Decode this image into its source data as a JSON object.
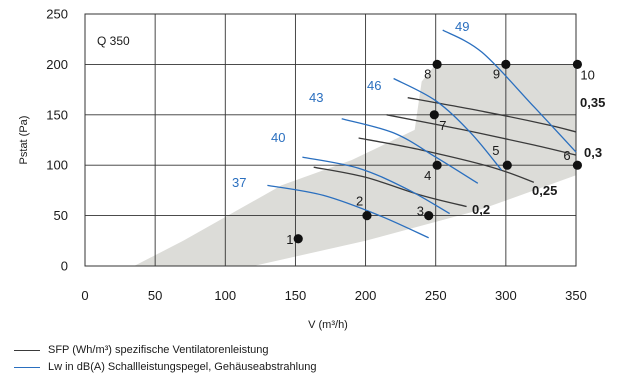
{
  "chart_data": {
    "type": "scatter",
    "model_label": "Q 350",
    "xlabel": "V (m³/h)",
    "ylabel": "Pstat (Pa)",
    "xlim": [
      0,
      350
    ],
    "ylim": [
      0,
      250
    ],
    "xticks": [
      0,
      50,
      100,
      150,
      200,
      250,
      300,
      350
    ],
    "yticks": [
      0,
      50,
      100,
      150,
      200,
      250
    ],
    "grid": true,
    "operating_range": [
      [
        35,
        0
      ],
      [
        120,
        0
      ],
      [
        200,
        25
      ],
      [
        280,
        55
      ],
      [
        350,
        90
      ],
      [
        350,
        200
      ],
      [
        250,
        200
      ],
      [
        240,
        183
      ],
      [
        235,
        135
      ],
      [
        190,
        105
      ],
      [
        140,
        80
      ],
      [
        70,
        25
      ]
    ],
    "points": [
      {
        "label": "1",
        "x": 152,
        "y": 27
      },
      {
        "label": "2",
        "x": 201,
        "y": 50
      },
      {
        "label": "3",
        "x": 245,
        "y": 50
      },
      {
        "label": "4",
        "x": 251,
        "y": 100
      },
      {
        "label": "5",
        "x": 301,
        "y": 100
      },
      {
        "label": "6",
        "x": 351,
        "y": 100
      },
      {
        "label": "7",
        "x": 249,
        "y": 150
      },
      {
        "label": "8",
        "x": 251,
        "y": 200
      },
      {
        "label": "9",
        "x": 300,
        "y": 200
      },
      {
        "label": "10",
        "x": 351,
        "y": 200
      }
    ],
    "series": [
      {
        "name": "SFP (Wh/m³) spezifische Ventilatorenleistung",
        "color": "#3a3a3a",
        "curves": [
          {
            "label": "0,2",
            "points": [
              [
                163,
                98
              ],
              [
                200,
                88
              ],
              [
                240,
                70
              ],
              [
                272,
                59
              ]
            ]
          },
          {
            "label": "0,25",
            "points": [
              [
                195,
                127
              ],
              [
                240,
                115
              ],
              [
                290,
                98
              ],
              [
                320,
                83
              ]
            ]
          },
          {
            "label": "0,3",
            "points": [
              [
                215,
                150
              ],
              [
                270,
                135
              ],
              [
                320,
                120
              ],
              [
                350,
                110
              ]
            ]
          },
          {
            "label": "0,35",
            "points": [
              [
                230,
                167
              ],
              [
                285,
                153
              ],
              [
                330,
                140
              ],
              [
                350,
                133
              ]
            ]
          }
        ]
      },
      {
        "name": "Lw in dB(A) Schallleistungspegel, Gehäuseabstrahlung",
        "color": "#2a6fbf",
        "curves": [
          {
            "label": "37",
            "points": [
              [
                130,
                80
              ],
              [
                170,
                70
              ],
              [
                210,
                50
              ],
              [
                245,
                28
              ]
            ]
          },
          {
            "label": "40",
            "points": [
              [
                155,
                108
              ],
              [
                195,
                97
              ],
              [
                230,
                76
              ],
              [
                260,
                52
              ]
            ]
          },
          {
            "label": "43",
            "points": [
              [
                183,
                146
              ],
              [
                220,
                132
              ],
              [
                250,
                108
              ],
              [
                280,
                82
              ]
            ]
          },
          {
            "label": "46",
            "points": [
              [
                220,
                186
              ],
              [
                250,
                164
              ],
              [
                275,
                132
              ],
              [
                297,
                95
              ]
            ]
          },
          {
            "label": "49",
            "points": [
              [
                255,
                234
              ],
              [
                283,
                212
              ],
              [
                320,
                158
              ],
              [
                350,
                113
              ]
            ]
          }
        ]
      }
    ]
  },
  "legend": [
    {
      "text": "SFP (Wh/m³) spezifische Ventilatorenleistung",
      "color": "#3a3a3a"
    },
    {
      "text": "Lw in dB(A) Schallleistungspegel, Gehäuseabstrahlung",
      "color": "#2a6fbf"
    }
  ]
}
